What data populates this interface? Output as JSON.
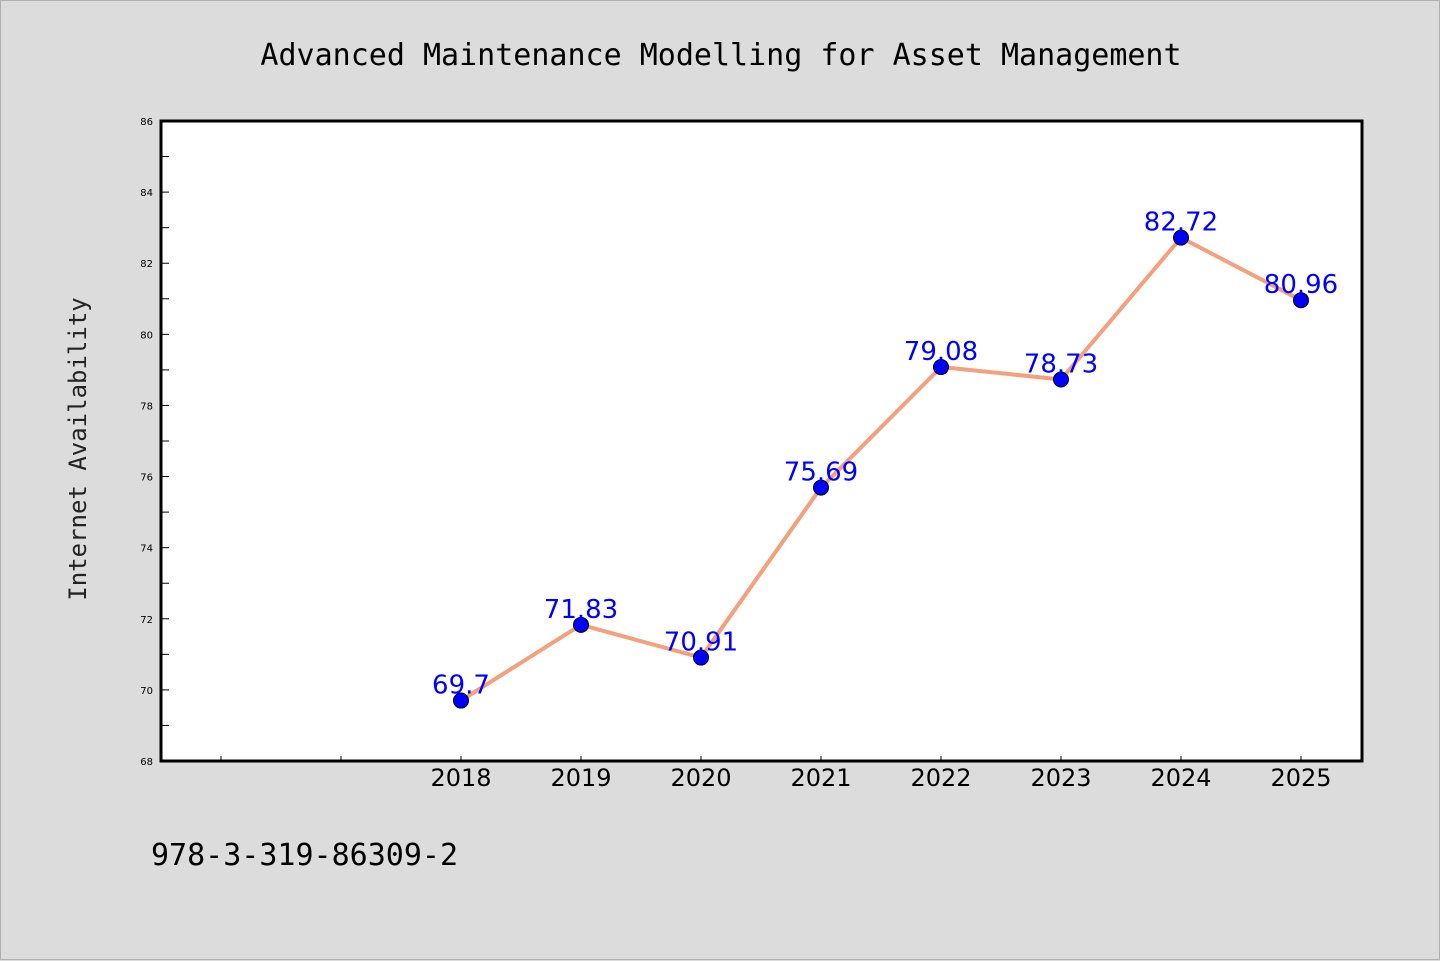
{
  "chart_data": {
    "type": "line",
    "title": "Advanced Maintenance Modelling for Asset Management",
    "xlabel": "",
    "ylabel": "Internet Availability",
    "categories": [
      "2018",
      "2019",
      "2020",
      "2021",
      "2022",
      "2023",
      "2024",
      "2025"
    ],
    "x_slots_before_data": 2,
    "series": [
      {
        "values": [
          69.7,
          71.83,
          70.91,
          75.69,
          79.08,
          78.73,
          82.72,
          80.96
        ],
        "data_labels": [
          "69.7",
          "71.83",
          "70.91",
          "75.69",
          "79.08",
          "78.73",
          "82.72",
          "80.96"
        ],
        "line_color": "#f4a07c",
        "marker_color": "#0000ff"
      }
    ],
    "ylim": [
      68,
      86
    ],
    "yticks": [
      "68",
      "70",
      "72",
      "74",
      "76",
      "78",
      "80",
      "82",
      "84",
      "86"
    ],
    "grid": false,
    "legend": "none"
  },
  "footer": {
    "isbn": "978-3-319-86309-2"
  },
  "colors": {
    "background": "#dcdcdc",
    "plot_background": "#ffffff",
    "line": "#f4a07c",
    "marker": "#0000ff",
    "data_label": "#0000ff"
  }
}
